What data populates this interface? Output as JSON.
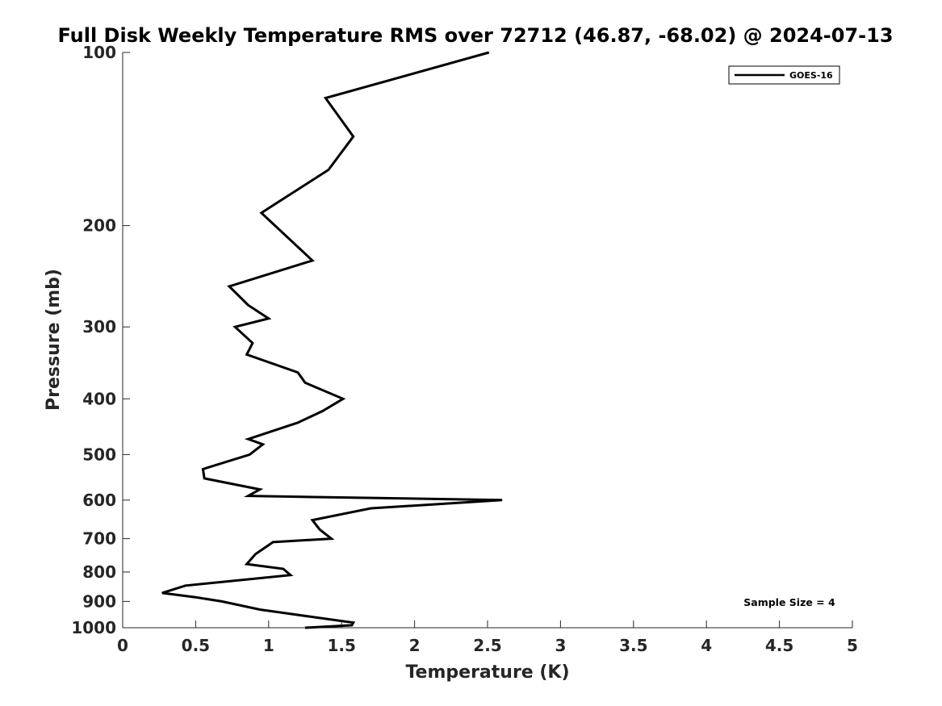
{
  "chart_data": {
    "type": "line",
    "title": "Full Disk Weekly Temperature RMS over 72712 (46.87, -68.02) @ 2024-07-13",
    "xlabel": "Temperature (K)",
    "ylabel": "Pressure (mb)",
    "xlim": [
      0,
      5
    ],
    "ylim": [
      100,
      1000
    ],
    "y_scale": "log",
    "y_reversed": true,
    "x_ticks": [
      0,
      0.5,
      1,
      1.5,
      2,
      2.5,
      3,
      3.5,
      4,
      4.5,
      5
    ],
    "x_tick_labels": [
      "0",
      "0.5",
      "1",
      "1.5",
      "2",
      "2.5",
      "3",
      "3.5",
      "4",
      "4.5",
      "5"
    ],
    "y_ticks": [
      100,
      200,
      300,
      400,
      500,
      600,
      700,
      800,
      900,
      1000
    ],
    "y_tick_labels": [
      "100",
      "200",
      "300",
      "400",
      "500",
      "600",
      "700",
      "800",
      "900",
      "1000"
    ],
    "grid": false,
    "legend_position": "top-right",
    "series": [
      {
        "name": "GOES-16",
        "color": "#000000",
        "x": [
          2.51,
          1.39,
          1.58,
          1.41,
          0.95,
          1.3,
          0.73,
          0.86,
          1.0,
          0.77,
          0.89,
          0.85,
          1.2,
          1.25,
          1.51,
          1.37,
          1.2,
          0.86,
          0.96,
          0.87,
          0.55,
          0.56,
          0.94,
          0.86,
          2.6,
          1.7,
          1.3,
          1.35,
          1.43,
          1.03,
          0.91,
          0.85,
          1.1,
          1.15,
          0.43,
          0.27,
          0.5,
          0.68,
          0.94,
          1.33,
          1.58,
          1.57,
          1.25
        ],
        "y": [
          100,
          120,
          140,
          160,
          190,
          230,
          255,
          275,
          290,
          300,
          320,
          335,
          360,
          375,
          400,
          420,
          440,
          470,
          480,
          500,
          530,
          550,
          575,
          590,
          600,
          620,
          650,
          675,
          700,
          710,
          745,
          775,
          790,
          810,
          845,
          870,
          885,
          900,
          930,
          960,
          980,
          990,
          1000
        ]
      }
    ],
    "annotations": [
      "Sample Size = 4"
    ]
  }
}
